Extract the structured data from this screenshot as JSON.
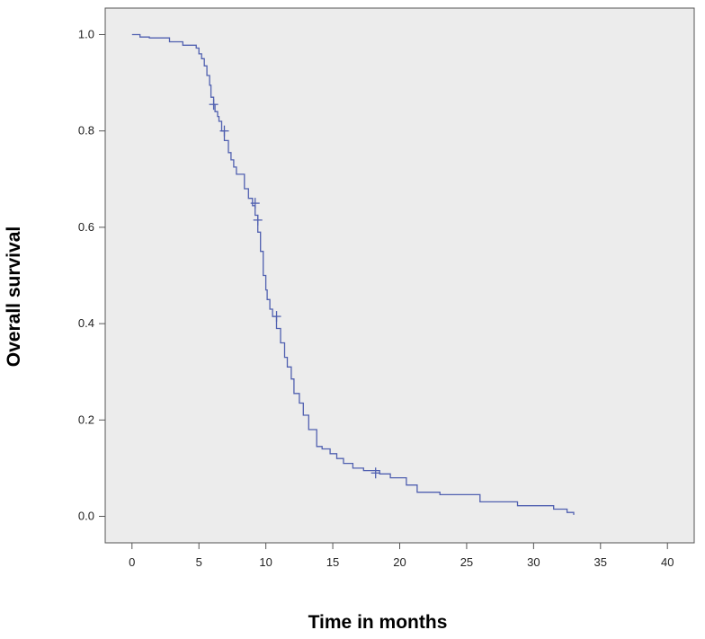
{
  "chart_data": {
    "type": "line",
    "title": "",
    "xlabel": "Time in months",
    "ylabel": "Overall survival",
    "xlim": [
      -2,
      42
    ],
    "ylim": [
      -0.055,
      1.055
    ],
    "x_ticks": [
      0,
      5,
      10,
      15,
      20,
      25,
      30,
      35,
      40
    ],
    "x_tick_labels": [
      "0",
      "5",
      "10",
      "15",
      "20",
      "25",
      "30",
      "35",
      "40"
    ],
    "y_ticks": [
      0.0,
      0.2,
      0.4,
      0.6,
      0.8,
      1.0
    ],
    "y_tick_labels": [
      "0.0",
      "0.2",
      "0.4",
      "0.6",
      "0.8",
      "1.0"
    ],
    "grid": false,
    "legend": "none",
    "colors": {
      "plot_background": "#ececec",
      "curve": "#5060b0",
      "frame": "#555555"
    },
    "series": [
      {
        "step": true,
        "x": [
          0,
          0.6,
          1.3,
          2.8,
          3.8,
          4.8,
          5.0,
          5.2,
          5.4,
          5.6,
          5.8,
          5.9,
          6.1,
          6.2,
          6.4,
          6.5,
          6.7,
          6.9,
          7.2,
          7.4,
          7.6,
          7.8,
          8.4,
          8.7,
          9.0,
          9.2,
          9.4,
          9.6,
          9.8,
          10.0,
          10.1,
          10.3,
          10.5,
          10.8,
          11.1,
          11.4,
          11.6,
          11.9,
          12.1,
          12.5,
          12.8,
          13.2,
          13.8,
          14.2,
          14.8,
          15.3,
          15.8,
          16.5,
          17.3,
          18.5,
          19.3,
          20.5,
          21.3,
          23.0,
          26.0,
          28.8,
          31.5,
          32.5,
          33.0
        ],
        "y": [
          1.0,
          0.995,
          0.993,
          0.985,
          0.978,
          0.972,
          0.96,
          0.95,
          0.935,
          0.915,
          0.895,
          0.87,
          0.855,
          0.84,
          0.83,
          0.82,
          0.8,
          0.78,
          0.755,
          0.74,
          0.725,
          0.71,
          0.68,
          0.66,
          0.645,
          0.625,
          0.59,
          0.55,
          0.5,
          0.47,
          0.45,
          0.43,
          0.415,
          0.39,
          0.36,
          0.33,
          0.31,
          0.285,
          0.255,
          0.235,
          0.21,
          0.18,
          0.145,
          0.14,
          0.13,
          0.12,
          0.11,
          0.1,
          0.095,
          0.088,
          0.08,
          0.065,
          0.05,
          0.045,
          0.03,
          0.022,
          0.015,
          0.008,
          0.003
        ],
        "censored": [
          {
            "x": 6.1,
            "y": 0.855
          },
          {
            "x": 6.9,
            "y": 0.8
          },
          {
            "x": 9.2,
            "y": 0.65
          },
          {
            "x": 9.4,
            "y": 0.615
          },
          {
            "x": 10.8,
            "y": 0.415
          },
          {
            "x": 18.2,
            "y": 0.09
          }
        ]
      }
    ]
  }
}
